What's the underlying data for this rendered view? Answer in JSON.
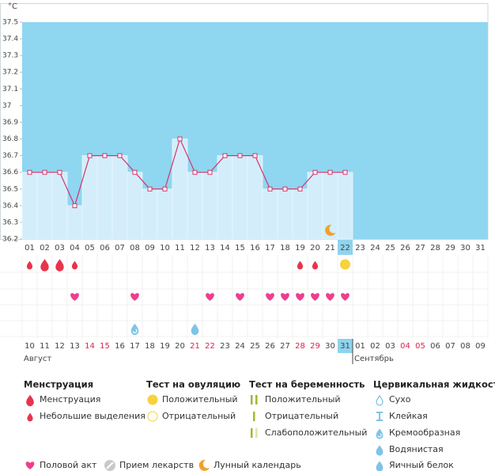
{
  "chart_data": {
    "type": "line",
    "unit": "°C",
    "categories": [
      "01",
      "02",
      "03",
      "04",
      "05",
      "06",
      "07",
      "08",
      "09",
      "10",
      "11",
      "12",
      "13",
      "14",
      "15",
      "16",
      "17",
      "18",
      "19",
      "20",
      "21",
      "22",
      "23",
      "24",
      "25",
      "26",
      "27",
      "28",
      "29",
      "30",
      "31"
    ],
    "values": [
      36.6,
      36.6,
      36.6,
      36.4,
      36.7,
      36.7,
      36.7,
      36.6,
      36.5,
      36.5,
      36.8,
      36.6,
      36.6,
      36.7,
      36.7,
      36.7,
      36.5,
      36.5,
      36.5,
      36.6,
      36.6,
      36.6,
      null,
      null,
      null,
      null,
      null,
      null,
      null,
      null,
      null
    ],
    "ylim": [
      36.2,
      37.5
    ],
    "yticks": [
      36.2,
      36.3,
      36.4,
      36.5,
      36.6,
      36.7,
      36.8,
      36.9,
      37,
      37.1,
      37.2,
      37.3,
      37.4,
      37.5
    ],
    "color": "#d6336c",
    "dates": [
      "10",
      "11",
      "12",
      "13",
      "14",
      "15",
      "16",
      "17",
      "18",
      "19",
      "20",
      "21",
      "22",
      "23",
      "24",
      "25",
      "26",
      "27",
      "28",
      "29",
      "30",
      "31",
      "01",
      "02",
      "03",
      "04",
      "05",
      "06",
      "07",
      "08",
      "09"
    ],
    "weekend": [
      false,
      false,
      false,
      false,
      true,
      true,
      false,
      false,
      false,
      false,
      false,
      true,
      true,
      false,
      false,
      false,
      false,
      false,
      true,
      true,
      false,
      false,
      false,
      false,
      false,
      true,
      true,
      false,
      false,
      false,
      false
    ],
    "months": [
      {
        "label": "Август",
        "at": "10"
      },
      {
        "label": "Сентябрь",
        "at": "01"
      }
    ],
    "highlight": "22",
    "menstruation": [
      "02",
      "03"
    ],
    "light_bleeding": [
      "01",
      "04",
      "19",
      "20"
    ],
    "ovulation_positive": [
      "22"
    ],
    "intercourse": [
      "04",
      "08",
      "13",
      "15",
      "17",
      "18",
      "19",
      "20",
      "21",
      "22"
    ],
    "cervical_creamy": [
      "08"
    ],
    "cervical_watery": [
      "12"
    ],
    "moon": [
      "21"
    ]
  },
  "legend": {
    "groups": [
      {
        "title": "Менструация",
        "items": [
          "Менструация",
          "Небольшие выделения"
        ]
      },
      {
        "title": "Тест на овуляцию",
        "items": [
          "Положительный",
          "Отрицательный"
        ]
      },
      {
        "title": "Тест на беременность",
        "items": [
          "Положительный",
          "Отрицательный",
          "Слабоположительный"
        ]
      },
      {
        "title": "Цервикальная жидкость",
        "items": [
          "Сухо",
          "Клейкая",
          "Кремообразная",
          "Водянистая",
          "Яичный белок"
        ]
      }
    ],
    "extra": [
      "Половой акт",
      "Прием лекарств",
      "Лунный календарь"
    ]
  }
}
